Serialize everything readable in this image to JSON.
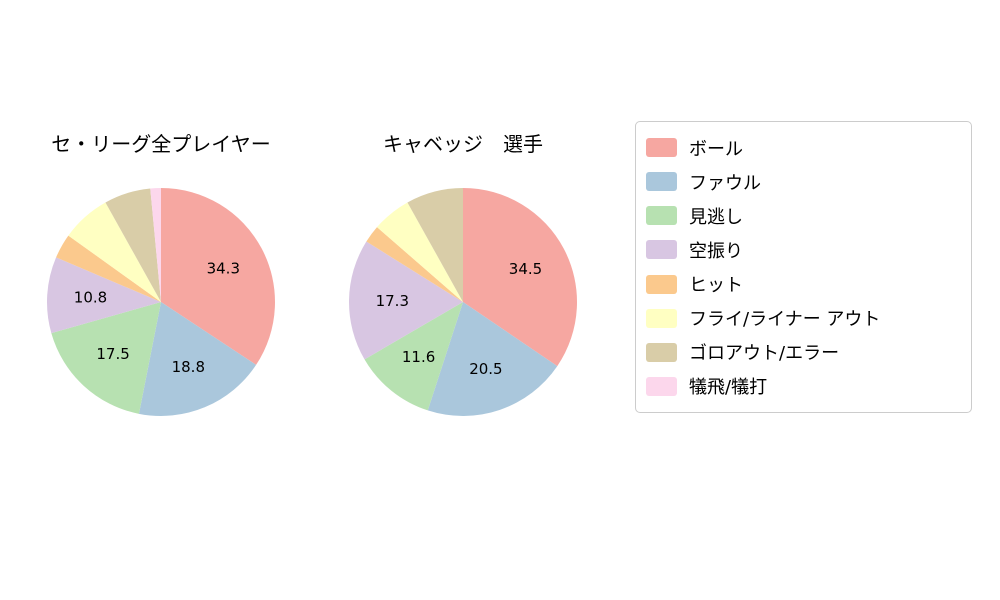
{
  "background": "#ffffff",
  "legend": {
    "items": [
      {
        "label": "ボール",
        "color": "#f6a7a1"
      },
      {
        "label": "ファウル",
        "color": "#aac7dc"
      },
      {
        "label": "見逃し",
        "color": "#b7e1b1"
      },
      {
        "label": "空振り",
        "color": "#d8c6e2"
      },
      {
        "label": "ヒット",
        "color": "#fbc98d"
      },
      {
        "label": "フライ/ライナー アウト",
        "color": "#ffffc2"
      },
      {
        "label": "ゴロアウト/エラー",
        "color": "#d9cda8"
      },
      {
        "label": "犠飛/犠打",
        "color": "#fcd7ec"
      }
    ]
  },
  "chart_data": [
    {
      "type": "pie",
      "title": "セ・リーグ全プレイヤー",
      "start_angle": "top",
      "direction": "clockwise",
      "legend_position": "right",
      "slices": [
        {
          "label": "ボール",
          "value": 34.3,
          "color": "#f6a7a1",
          "show_label": true
        },
        {
          "label": "ファウル",
          "value": 18.8,
          "color": "#aac7dc",
          "show_label": true
        },
        {
          "label": "見逃し",
          "value": 17.5,
          "color": "#b7e1b1",
          "show_label": true
        },
        {
          "label": "空振り",
          "value": 10.8,
          "color": "#d8c6e2",
          "show_label": true
        },
        {
          "label": "ヒット",
          "value": 3.5,
          "color": "#fbc98d",
          "show_label": false
        },
        {
          "label": "フライ/ライナー アウト",
          "value": 7.0,
          "color": "#ffffc2",
          "show_label": false
        },
        {
          "label": "ゴロアウト/エラー",
          "value": 6.6,
          "color": "#d9cda8",
          "show_label": false
        },
        {
          "label": "犠飛/犠打",
          "value": 1.5,
          "color": "#fcd7ec",
          "show_label": false
        }
      ]
    },
    {
      "type": "pie",
      "title": "キャベッジ　選手",
      "start_angle": "top",
      "direction": "clockwise",
      "legend_position": "right",
      "slices": [
        {
          "label": "ボール",
          "value": 34.5,
          "color": "#f6a7a1",
          "show_label": true
        },
        {
          "label": "ファウル",
          "value": 20.5,
          "color": "#aac7dc",
          "show_label": true
        },
        {
          "label": "見逃し",
          "value": 11.6,
          "color": "#b7e1b1",
          "show_label": true
        },
        {
          "label": "空振り",
          "value": 17.3,
          "color": "#d8c6e2",
          "show_label": true
        },
        {
          "label": "ヒット",
          "value": 2.5,
          "color": "#fbc98d",
          "show_label": false
        },
        {
          "label": "フライ/ライナー アウト",
          "value": 5.5,
          "color": "#ffffc2",
          "show_label": false
        },
        {
          "label": "ゴロアウト/エラー",
          "value": 8.1,
          "color": "#d9cda8",
          "show_label": false
        },
        {
          "label": "犠飛/犠打",
          "value": 0,
          "color": "#fcd7ec",
          "show_label": false
        }
      ]
    }
  ]
}
